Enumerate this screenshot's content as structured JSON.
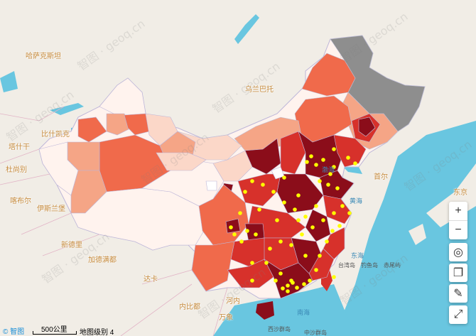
{
  "map": {
    "labels": {
      "kazakhstan": "哈萨克斯坦",
      "mongolia": "乌兰巴托",
      "bishkek": "比什凯克",
      "tajikistan": "塔什干",
      "dushanbe": "杜尚别",
      "kabul": "喀布尔",
      "islamabad": "伊斯兰堡",
      "newdelhi": "新德里",
      "kathmandu": "加德满都",
      "dhaka": "达卡",
      "naypyidaw": "内比都",
      "hanoi": "河内",
      "vientiane": "万象",
      "bohai": "渤海",
      "yellowsea": "黄海",
      "seoul": "首尔",
      "tokyo": "东京",
      "eastsea": "东海",
      "southsea": "南海",
      "taiwan": "台湾岛",
      "diaoyu": "钓鱼岛",
      "chiwei": "赤尾屿",
      "xisha": "西沙群岛",
      "zhongsha": "中沙群岛"
    },
    "watermark": "智图 · geoq.cn",
    "colors": {
      "land_bg": "#f1ede6",
      "sea": "#69c6e0",
      "gray_region": "#8e8e8e",
      "dark_red": "#8b0d1a",
      "red": "#d7312b",
      "orange_red": "#f06a4b",
      "salmon": "#f5a586",
      "light_pink": "#fbd7c8",
      "pale": "#fff3ee",
      "points": "#ffff00"
    }
  },
  "controls": {
    "zoom_in": "+",
    "zoom_out": "−",
    "locate": "◎",
    "layers": "❐",
    "measure": "✎",
    "fullscreen": "⤢"
  },
  "footer": {
    "logo": "© 智图",
    "scale": "500公里",
    "level": "地图级别 4"
  }
}
